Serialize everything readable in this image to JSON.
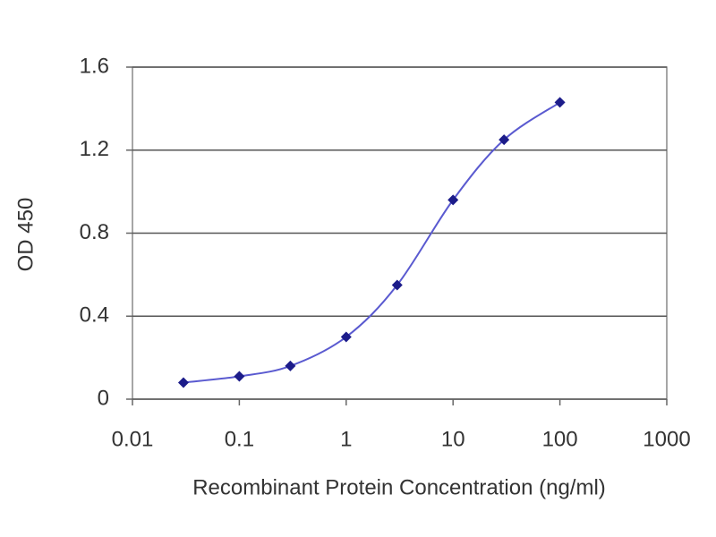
{
  "chart_data": {
    "type": "line",
    "x_label": "Recombinant Protein Concentration (ng/ml)",
    "y_label": "OD 450",
    "xscale": "log",
    "grid": true,
    "xlim": [
      0.01,
      1000
    ],
    "ylim": [
      0,
      1.6
    ],
    "xticks": [
      0.01,
      0.1,
      1,
      10,
      100,
      1000
    ],
    "yticks": [
      0,
      0.4,
      0.8,
      1.2,
      1.6
    ],
    "series": [
      {
        "color": "#5a5ad0",
        "marker_color": "#1c1c8a",
        "x": [
          0.03,
          0.1,
          0.3,
          1,
          3,
          10,
          30,
          100
        ],
        "values": [
          0.08,
          0.11,
          0.16,
          0.3,
          0.55,
          0.96,
          1.25,
          1.43
        ]
      }
    ]
  }
}
